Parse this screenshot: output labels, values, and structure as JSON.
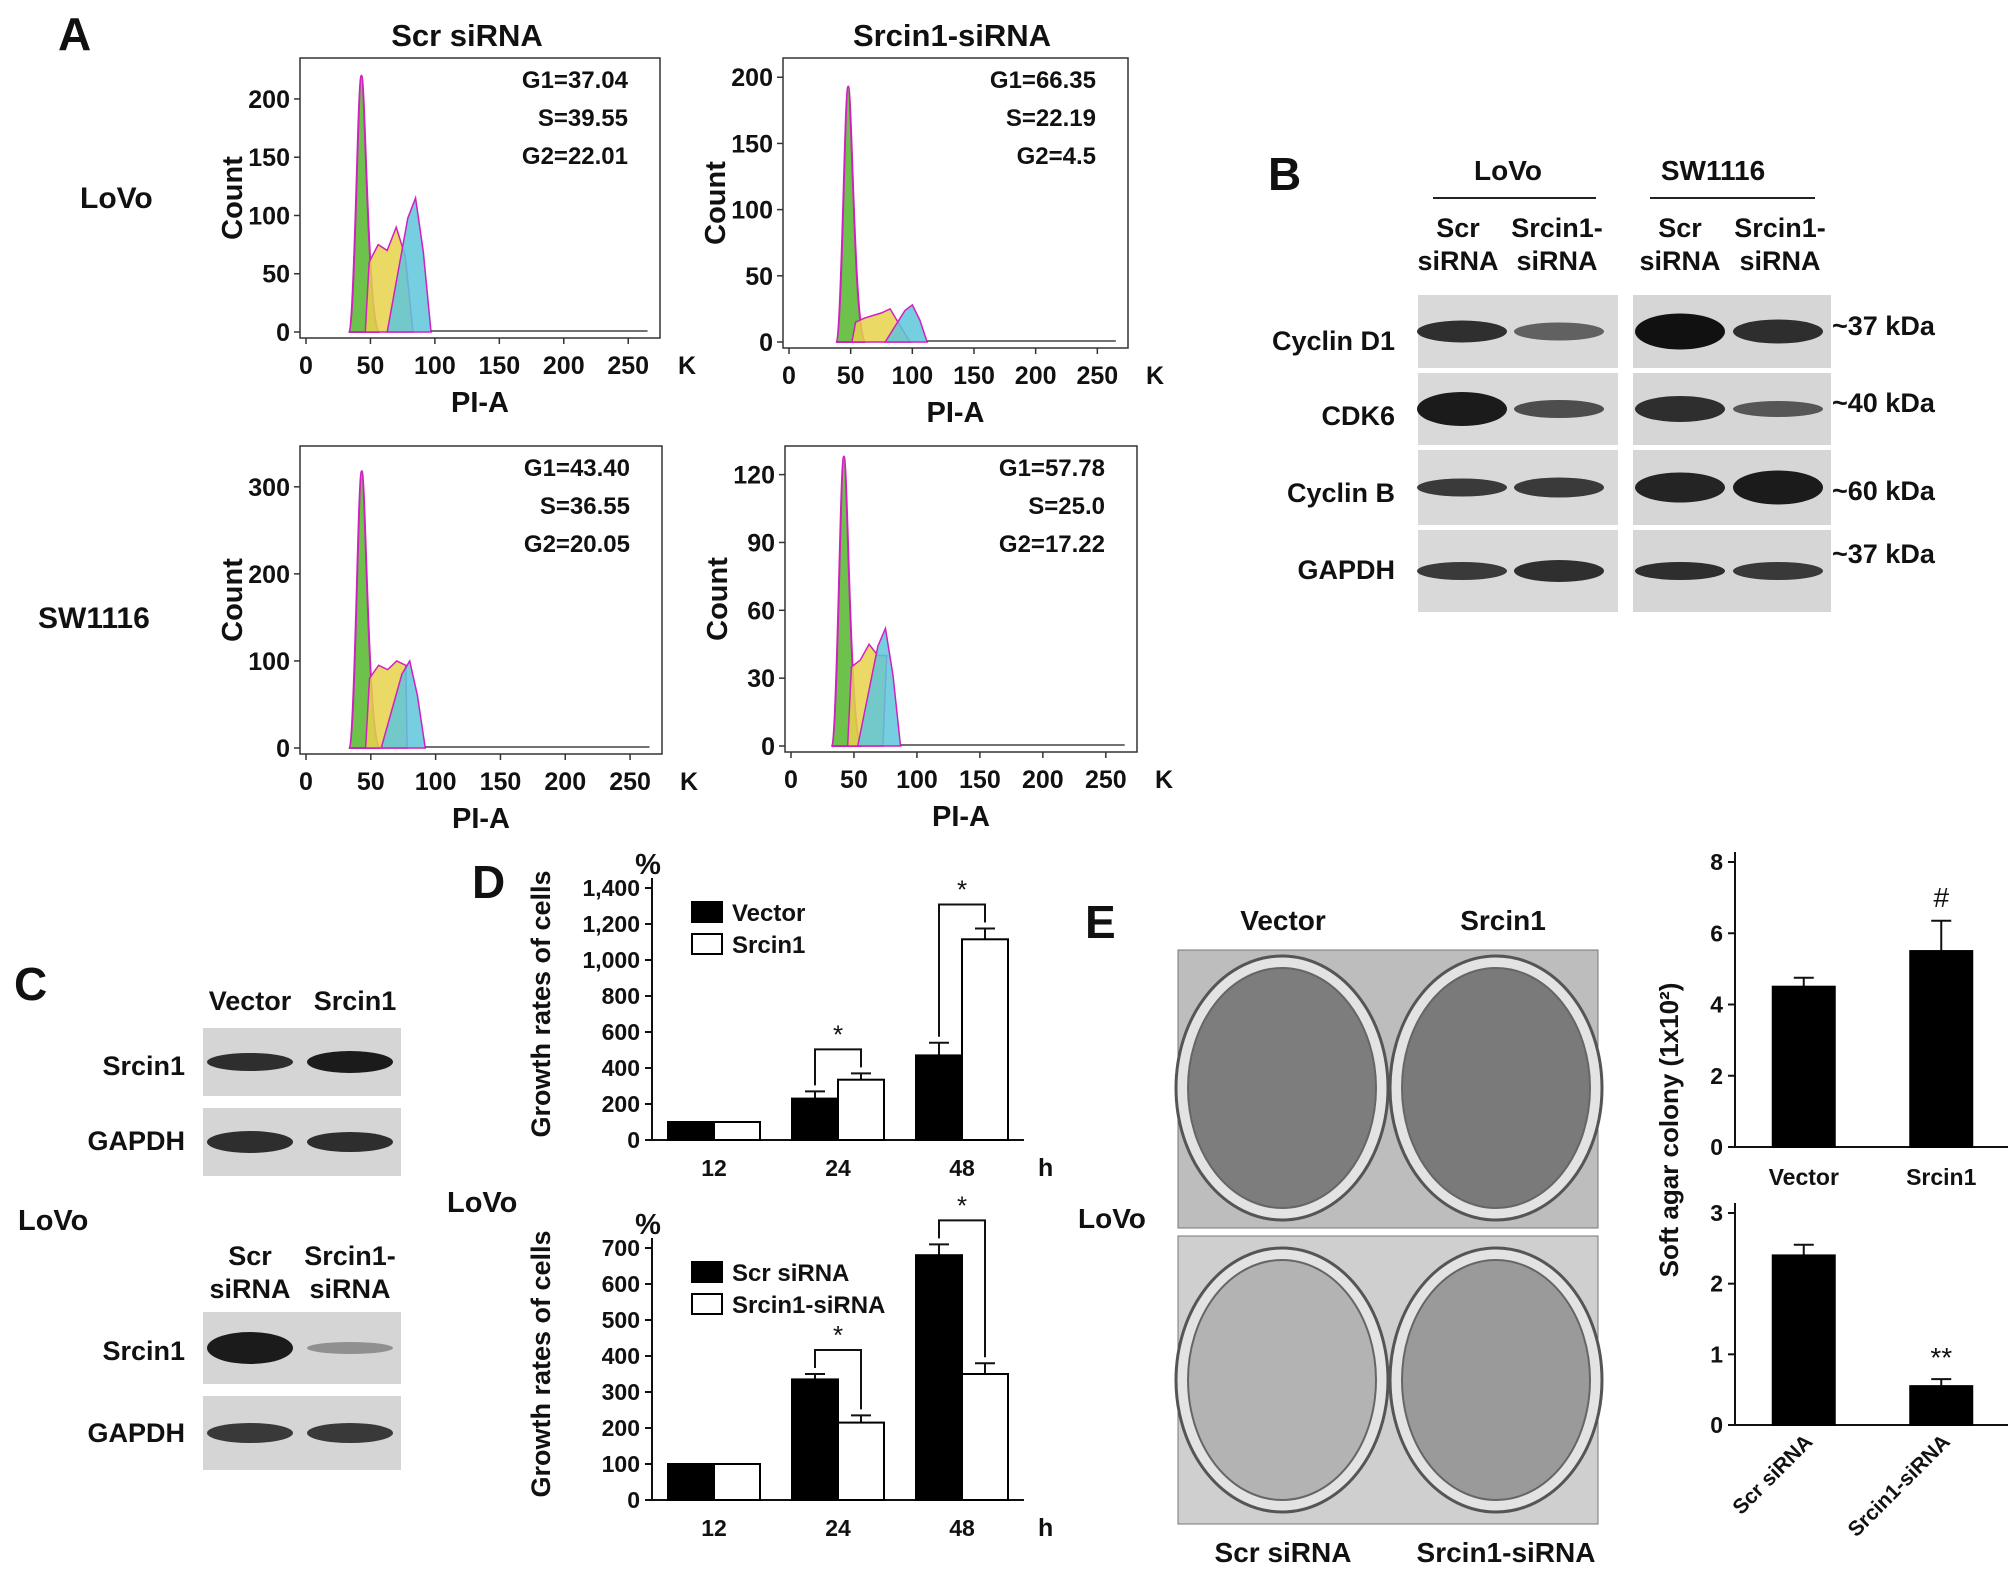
{
  "panel_letters": {
    "a": "A",
    "b": "B",
    "c": "C",
    "d": "D",
    "e": "E"
  },
  "panelA": {
    "col_titles": [
      "Scr siRNA",
      "Srcin1-siRNA"
    ],
    "row_labels": [
      "LoVo",
      "SW1116"
    ],
    "axis_x_label": "PI-A",
    "axis_y_label": "Count",
    "x_ticks": [
      "0",
      "50",
      "100",
      "150",
      "200",
      "250"
    ],
    "x_unit": "K",
    "plots": [
      {
        "stats": [
          "G1=37.04",
          "S=39.55",
          "G2=22.01"
        ],
        "y_ticks": [
          "0",
          "50",
          "100",
          "150",
          "200"
        ],
        "ymax": 230
      },
      {
        "stats": [
          "G1=66.35",
          "S=22.19",
          "G2=4.5"
        ],
        "y_ticks": [
          "0",
          "50",
          "100",
          "150",
          "200"
        ],
        "ymax": 210
      },
      {
        "stats": [
          "G1=43.40",
          "S=36.55",
          "G2=20.05"
        ],
        "y_ticks": [
          "0",
          "100",
          "200",
          "300"
        ],
        "ymax": 340
      },
      {
        "stats": [
          "G1=57.78",
          "S=25.0",
          "G2=17.22"
        ],
        "y_ticks": [
          "0",
          "30",
          "60",
          "90",
          "120"
        ],
        "ymax": 130
      }
    ]
  },
  "panelB": {
    "groups": [
      "LoVo",
      "SW1116"
    ],
    "lanes": [
      "Scr",
      "siRNA",
      "Srcin1-",
      "siRNA",
      "Scr",
      "siRNA",
      "Srcin1-",
      "siRNA"
    ],
    "proteins": [
      "Cyclin D1",
      "CDK6",
      "Cyclin B",
      "GAPDH"
    ],
    "sizes": [
      "~37 kDa",
      "~40 kDa",
      "~60 kDa",
      "~37 kDa"
    ]
  },
  "panelC": {
    "top_lanes": [
      "Vector",
      "Srcin1"
    ],
    "bottom_lanes": [
      "Scr",
      "siRNA",
      "Srcin1-",
      "siRNA"
    ],
    "proteins": [
      "Srcin1",
      "GAPDH",
      "Srcin1",
      "GAPDH"
    ],
    "cell_line": "LoVo"
  },
  "panelD": {
    "cell_line": "LoVo",
    "y_label": "Growth rates of cells",
    "y_unit": "%",
    "x_unit": "h"
  },
  "panelE": {
    "col_labels_top": [
      "Vector",
      "Srcin1"
    ],
    "col_labels_bottom": [
      "Scr siRNA",
      "Srcin1-siRNA"
    ],
    "cell_line": "LoVo",
    "y_label": "Soft agar colony (1x10²)",
    "sig_top": "#",
    "sig_bottom": "**"
  },
  "chart_data": [
    {
      "type": "bar",
      "panel": "D-top",
      "categories": [
        "12",
        "24",
        "48"
      ],
      "series": [
        {
          "name": "Vector",
          "values": [
            100,
            230,
            470
          ],
          "errors": [
            0,
            40,
            70
          ]
        },
        {
          "name": "Srcin1",
          "values": [
            100,
            335,
            1115
          ],
          "errors": [
            0,
            35,
            60
          ]
        }
      ],
      "sig": [
        "",
        "*",
        "*"
      ],
      "ylim": [
        0,
        1400
      ],
      "y_ticks": [
        "0",
        "200",
        "400",
        "600",
        "800",
        "1,000",
        "1,200",
        "1,400"
      ]
    },
    {
      "type": "bar",
      "panel": "D-bottom",
      "categories": [
        "12",
        "24",
        "48"
      ],
      "series": [
        {
          "name": "Scr siRNA",
          "values": [
            100,
            335,
            680
          ],
          "errors": [
            0,
            15,
            30
          ]
        },
        {
          "name": "Srcin1-siRNA",
          "values": [
            100,
            215,
            350
          ],
          "errors": [
            0,
            20,
            30
          ]
        }
      ],
      "sig": [
        "",
        "*",
        "*"
      ],
      "ylim": [
        0,
        700
      ],
      "y_ticks": [
        "0",
        "100",
        "200",
        "300",
        "400",
        "500",
        "600",
        "700"
      ]
    },
    {
      "type": "bar",
      "panel": "E-top",
      "categories": [
        "Vector",
        "Srcin1"
      ],
      "values": [
        4.5,
        5.5
      ],
      "errors": [
        0.25,
        0.85
      ],
      "ylim": [
        0,
        8
      ],
      "y_ticks": [
        "0",
        "2",
        "4",
        "6",
        "8"
      ]
    },
    {
      "type": "bar",
      "panel": "E-bottom",
      "categories": [
        "Scr siRNA",
        "Srcin1-siRNA"
      ],
      "values": [
        2.4,
        0.55
      ],
      "errors": [
        0.15,
        0.1
      ],
      "ylim": [
        0,
        3
      ],
      "y_ticks": [
        "0",
        "1",
        "2",
        "3"
      ]
    }
  ]
}
